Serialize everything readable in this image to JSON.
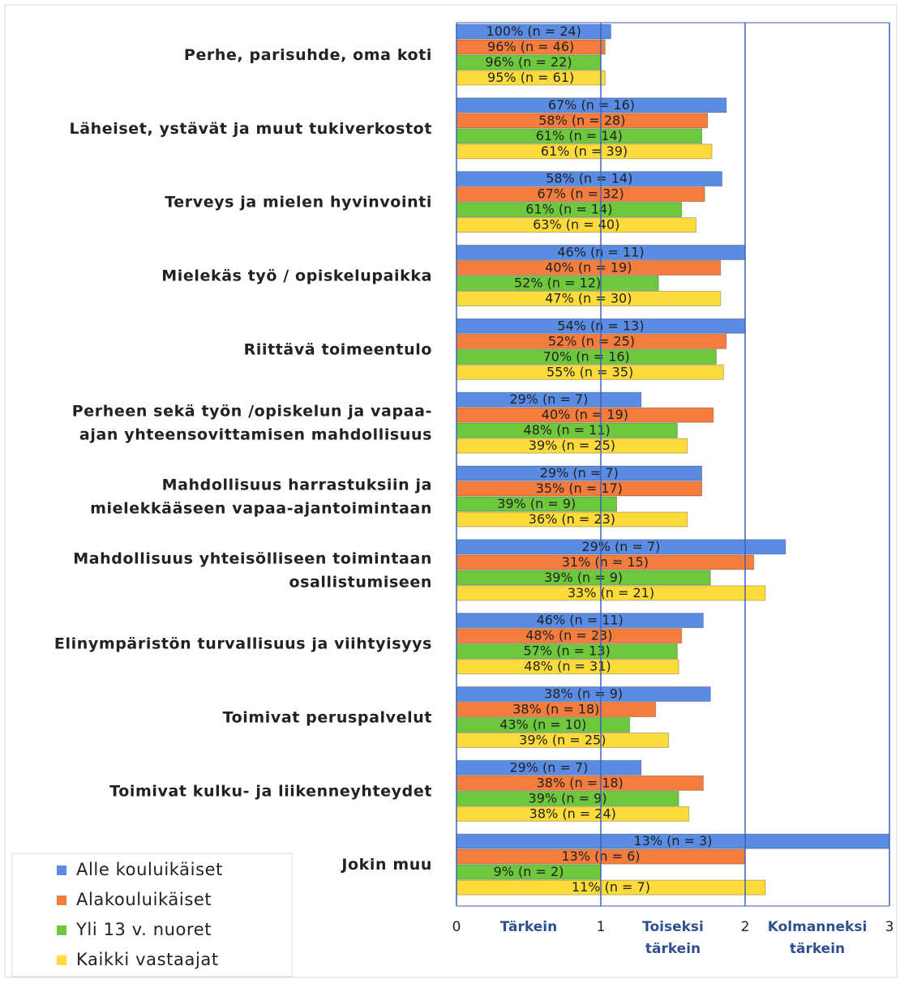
{
  "chart_data": {
    "type": "hbar",
    "categories": [
      "Perhe, parisuhde, oma koti",
      "Läheiset, ystävät ja muut tukiverkostot",
      "Terveys ja mielen hyvinvointi",
      "Mielekäs työ / opiskelupaikka",
      "Riittävä toimeentulo",
      "Perheen sekä työn /opiskelun ja vapaa-\najan yhteensovittamisen mahdollisuus",
      "Mahdollisuus harrastuksiin ja\nmielekkääseen vapaa-ajantoimintaan",
      "Mahdollisuus yhteisölliseen toimintaan\nosallistumiseen",
      "Elinympäristön turvallisuus ja viihtyisyys",
      "Toimivat peruspalvelut",
      "Toimivat kulku- ja liikenneyhteydet",
      "Jokin muu"
    ],
    "series": [
      {
        "name": "Alle kouluikäiset",
        "color": "#5a8ce4",
        "values": [
          1.07,
          1.87,
          1.84,
          2.0,
          2.0,
          1.28,
          1.7,
          2.28,
          1.71,
          1.76,
          1.28,
          3.0
        ],
        "percent_labels": [
          "100% (n = 24)",
          "67% (n = 16)",
          "58% (n = 14)",
          "46% (n = 11)",
          "54% (n = 13)",
          "29% (n = 7)",
          "29% (n = 7)",
          "29% (n = 7)",
          "46% (n = 11)",
          "38% (n = 9)",
          "29% (n = 7)",
          "13% (n = 3)"
        ]
      },
      {
        "name": "Alakouluikäiset",
        "color": "#f47c3c",
        "values": [
          1.03,
          1.74,
          1.72,
          1.83,
          1.87,
          1.78,
          1.7,
          2.06,
          1.56,
          1.38,
          1.71,
          2.0
        ],
        "percent_labels": [
          "96% (n = 46)",
          "58% (n = 28)",
          "67% (n = 32)",
          "40% (n = 19)",
          "52% (n = 25)",
          "40% (n = 19)",
          "35% (n = 17)",
          "31% (n = 15)",
          "48% (n = 23)",
          "38% (n = 18)",
          "38% (n = 18)",
          "13% (n = 6)"
        ]
      },
      {
        "name": "Yli 13 v. nuoret",
        "color": "#6dc83c",
        "values": [
          1.0,
          1.7,
          1.56,
          1.4,
          1.8,
          1.53,
          1.11,
          1.76,
          1.53,
          1.2,
          1.54,
          1.0
        ],
        "percent_labels": [
          "96% (n = 22)",
          "61% (n = 14)",
          "61% (n = 14)",
          "52% (n = 12)",
          "70% (n = 16)",
          "48% (n = 11)",
          "39% (n = 9)",
          "39% (n = 9)",
          "57% (n = 13)",
          "43% (n = 10)",
          "39% (n = 9)",
          "9% (n = 2)"
        ]
      },
      {
        "name": "Kaikki vastaajat",
        "color": "#fddb3a",
        "values": [
          1.03,
          1.77,
          1.66,
          1.83,
          1.85,
          1.6,
          1.6,
          2.14,
          1.54,
          1.47,
          1.61,
          2.14
        ],
        "percent_labels": [
          "95% (n = 61)",
          "61% (n = 39)",
          "63% (n = 40)",
          "47% (n = 30)",
          "55% (n = 35)",
          "39% (n = 25)",
          "36% (n = 23)",
          "33% (n = 21)",
          "48% (n = 31)",
          "39% (n = 25)",
          "38% (n = 24)",
          "11% (n = 7)"
        ]
      }
    ],
    "xlim": [
      0,
      3
    ],
    "xticks": [
      0,
      1,
      2,
      3
    ],
    "x_band_labels": [
      "Tärkein",
      "Toiseksi tärkein",
      "Kolmanneksi tärkein"
    ],
    "grid": true,
    "legend": "lower left"
  }
}
